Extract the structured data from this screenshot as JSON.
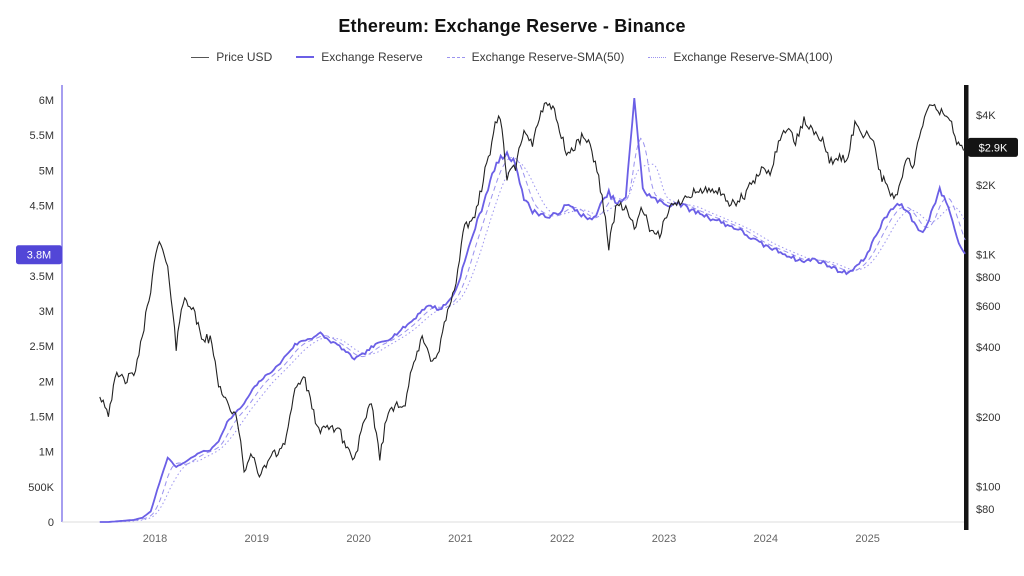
{
  "title": "Ethereum: Exchange Reserve - Binance",
  "legend": [
    {
      "label": "Price USD",
      "color": "#555555",
      "style": "solid",
      "width": 1.5
    },
    {
      "label": "Exchange Reserve",
      "color": "#6b5fe6",
      "style": "solid",
      "width": 2
    },
    {
      "label": "Exchange Reserve-SMA(50)",
      "color": "#9b93ef",
      "style": "dashed",
      "width": 1.5
    },
    {
      "label": "Exchange Reserve-SMA(100)",
      "color": "#9b93ef",
      "style": "dotted",
      "width": 1.5
    }
  ],
  "axes": {
    "left": {
      "axis_color": "#8f86ec",
      "ticks": [
        {
          "label": "6M",
          "value": 6
        },
        {
          "label": "5.5M",
          "value": 5.5
        },
        {
          "label": "5M",
          "value": 5
        },
        {
          "label": "4.5M",
          "value": 4.5
        },
        {
          "label": "3.5M",
          "value": 3.5
        },
        {
          "label": "3M",
          "value": 3
        },
        {
          "label": "2.5M",
          "value": 2.5
        },
        {
          "label": "2M",
          "value": 2
        },
        {
          "label": "1.5M",
          "value": 1.5
        },
        {
          "label": "1M",
          "value": 1
        },
        {
          "label": "500K",
          "value": 0.5
        },
        {
          "label": "0",
          "value": 0
        }
      ],
      "badge": {
        "label": "3.8M",
        "value": 3.8,
        "color": "#5246d7",
        "text_color": "#ffffff"
      }
    },
    "right": {
      "axis_color": "#141414",
      "scale": "log",
      "ticks": [
        {
          "label": "$4K",
          "value": 4000
        },
        {
          "label": "$2K",
          "value": 2000
        },
        {
          "label": "$1K",
          "value": 1000
        },
        {
          "label": "$800",
          "value": 800
        },
        {
          "label": "$600",
          "value": 600
        },
        {
          "label": "$400",
          "value": 400
        },
        {
          "label": "$200",
          "value": 200
        },
        {
          "label": "$100",
          "value": 100
        },
        {
          "label": "$80",
          "value": 80
        }
      ],
      "badge": {
        "label": "$2.9K",
        "value": 2900,
        "color": "#141414",
        "text_color": "#ffffff"
      }
    },
    "x": {
      "ticks": [
        {
          "label": "2018",
          "value": 2018
        },
        {
          "label": "2019",
          "value": 2019
        },
        {
          "label": "2020",
          "value": 2020
        },
        {
          "label": "2021",
          "value": 2021
        },
        {
          "label": "2022",
          "value": 2022
        },
        {
          "label": "2023",
          "value": 2023
        },
        {
          "label": "2024",
          "value": 2024
        },
        {
          "label": "2025",
          "value": 2025
        }
      ]
    }
  },
  "chart_data": {
    "type": "line",
    "x_unit": "decimal years, monthly samples",
    "left_ylim": [
      0,
      6.2
    ],
    "left_unit": "ETH (millions)",
    "right_ylim": [
      70,
      5100
    ],
    "right_scale": "log",
    "grid": false,
    "legend_position": "top",
    "x": [
      2017.458,
      2017.542,
      2017.625,
      2017.708,
      2017.792,
      2017.875,
      2017.958,
      2018.042,
      2018.125,
      2018.208,
      2018.292,
      2018.375,
      2018.458,
      2018.542,
      2018.625,
      2018.708,
      2018.792,
      2018.875,
      2018.958,
      2019.042,
      2019.125,
      2019.208,
      2019.292,
      2019.375,
      2019.458,
      2019.542,
      2019.625,
      2019.708,
      2019.792,
      2019.875,
      2019.958,
      2020.042,
      2020.125,
      2020.208,
      2020.292,
      2020.375,
      2020.458,
      2020.542,
      2020.625,
      2020.708,
      2020.792,
      2020.875,
      2020.958,
      2021.042,
      2021.125,
      2021.208,
      2021.292,
      2021.375,
      2021.458,
      2021.542,
      2021.625,
      2021.708,
      2021.792,
      2021.875,
      2021.958,
      2022.042,
      2022.125,
      2022.208,
      2022.292,
      2022.375,
      2022.458,
      2022.542,
      2022.625,
      2022.708,
      2022.792,
      2022.875,
      2022.958,
      2023.042,
      2023.125,
      2023.208,
      2023.292,
      2023.375,
      2023.458,
      2023.542,
      2023.625,
      2023.708,
      2023.792,
      2023.875,
      2023.958,
      2024.042,
      2024.125,
      2024.208,
      2024.292,
      2024.375,
      2024.458,
      2024.542,
      2024.625,
      2024.708,
      2024.792,
      2024.875,
      2024.958,
      2025.042,
      2025.125,
      2025.208,
      2025.292,
      2025.375,
      2025.458,
      2025.542,
      2025.625,
      2025.708,
      2025.792,
      2025.875,
      2025.958
    ],
    "series": [
      {
        "name": "Price USD",
        "axis": "right",
        "color": "#222222",
        "style": "solid",
        "unit": "USD",
        "last_value": 2900,
        "values": [
          250,
          210,
          300,
          290,
          300,
          430,
          720,
          1150,
          850,
          400,
          670,
          570,
          440,
          430,
          280,
          230,
          200,
          120,
          135,
          110,
          135,
          140,
          165,
          260,
          300,
          215,
          170,
          180,
          180,
          150,
          130,
          180,
          225,
          133,
          210,
          230,
          228,
          340,
          430,
          355,
          385,
          570,
          735,
          1310,
          1420,
          1920,
          2800,
          4100,
          2150,
          2400,
          3300,
          3000,
          4200,
          4600,
          3700,
          2700,
          2900,
          3300,
          2800,
          1950,
          1070,
          1700,
          1550,
          1330,
          1570,
          1220,
          1200,
          1580,
          1640,
          1790,
          1880,
          1860,
          1930,
          1860,
          1650,
          1670,
          1800,
          2050,
          2300,
          2280,
          3000,
          3600,
          3000,
          3780,
          3400,
          3230,
          2500,
          2630,
          2520,
          3620,
          3340,
          3280,
          2230,
          1850,
          1790,
          2520,
          2450,
          3650,
          4480,
          4150,
          3950,
          3050,
          2900
        ]
      },
      {
        "name": "Exchange Reserve",
        "axis": "left",
        "color": "#6b5fe6",
        "style": "solid",
        "unit": "M ETH",
        "last_value": 3.8,
        "values": [
          0.0,
          0.0,
          0.01,
          0.02,
          0.03,
          0.06,
          0.15,
          0.55,
          0.92,
          0.78,
          0.85,
          0.93,
          1.0,
          1.02,
          1.15,
          1.42,
          1.55,
          1.68,
          1.88,
          2.02,
          2.12,
          2.22,
          2.38,
          2.52,
          2.58,
          2.62,
          2.68,
          2.58,
          2.52,
          2.42,
          2.32,
          2.38,
          2.48,
          2.55,
          2.6,
          2.68,
          2.78,
          2.88,
          3.02,
          3.08,
          3.02,
          3.12,
          3.3,
          3.7,
          4.1,
          4.45,
          4.85,
          5.15,
          5.22,
          5.1,
          4.6,
          4.42,
          4.38,
          4.32,
          4.4,
          4.5,
          4.45,
          4.35,
          4.28,
          4.5,
          4.68,
          4.52,
          4.6,
          6.05,
          4.72,
          4.62,
          4.55,
          4.5,
          4.55,
          4.48,
          4.42,
          4.38,
          4.32,
          4.28,
          4.22,
          4.18,
          4.1,
          4.02,
          3.95,
          3.9,
          3.85,
          3.8,
          3.74,
          3.7,
          3.74,
          3.7,
          3.64,
          3.58,
          3.54,
          3.62,
          3.72,
          3.95,
          4.2,
          4.4,
          4.52,
          4.45,
          4.25,
          4.1,
          4.4,
          4.72,
          4.5,
          4.05,
          3.8
        ]
      },
      {
        "name": "Exchange Reserve-SMA(50)",
        "axis": "left",
        "color": "#9b93ef",
        "style": "dashed",
        "derived_from": "Exchange Reserve",
        "window_days": 50
      },
      {
        "name": "Exchange Reserve-SMA(100)",
        "axis": "left",
        "color": "#9b93ef",
        "style": "dotted",
        "derived_from": "Exchange Reserve",
        "window_days": 100
      }
    ]
  }
}
